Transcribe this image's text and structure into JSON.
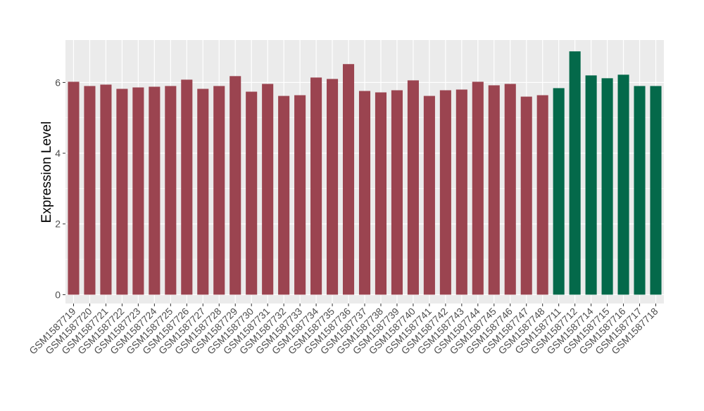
{
  "chart_data": {
    "type": "bar",
    "title": "",
    "xlabel": "",
    "ylabel": "Expression Level",
    "ylim": [
      -0.25,
      7.2
    ],
    "yticks": [
      0,
      2,
      4,
      6
    ],
    "grid": true,
    "legend": "none",
    "categories": [
      "GSM1587719",
      "GSM1587720",
      "GSM1587721",
      "GSM1587722",
      "GSM1587723",
      "GSM1587724",
      "GSM1587725",
      "GSM1587726",
      "GSM1587727",
      "GSM1587728",
      "GSM1587729",
      "GSM1587730",
      "GSM1587731",
      "GSM1587732",
      "GSM1587733",
      "GSM1587734",
      "GSM1587735",
      "GSM1587736",
      "GSM1587737",
      "GSM1587738",
      "GSM1587739",
      "GSM1587740",
      "GSM1587741",
      "GSM1587742",
      "GSM1587743",
      "GSM1587744",
      "GSM1587745",
      "GSM1587746",
      "GSM1587747",
      "GSM1587748",
      "GSM1587711",
      "GSM1587712",
      "GSM1587714",
      "GSM1587715",
      "GSM1587716",
      "GSM1587717",
      "GSM1587718"
    ],
    "values": [
      6.02,
      5.9,
      5.94,
      5.82,
      5.86,
      5.88,
      5.9,
      6.08,
      5.82,
      5.9,
      6.18,
      5.74,
      5.96,
      5.62,
      5.64,
      6.14,
      6.1,
      6.52,
      5.76,
      5.72,
      5.78,
      6.06,
      5.62,
      5.78,
      5.8,
      6.02,
      5.92,
      5.96,
      5.6,
      5.64,
      5.84,
      6.88,
      6.2,
      6.12,
      6.22,
      5.9,
      5.9
    ],
    "groups": [
      "a",
      "a",
      "a",
      "a",
      "a",
      "a",
      "a",
      "a",
      "a",
      "a",
      "a",
      "a",
      "a",
      "a",
      "a",
      "a",
      "a",
      "a",
      "a",
      "a",
      "a",
      "a",
      "a",
      "a",
      "a",
      "a",
      "a",
      "a",
      "a",
      "a",
      "b",
      "b",
      "b",
      "b",
      "b",
      "b",
      "b"
    ],
    "colors": {
      "a": "#9b4450",
      "b": "#04694a",
      "panel": "#ebebeb",
      "grid": "#ffffff",
      "text": "#4d4d4d"
    }
  }
}
